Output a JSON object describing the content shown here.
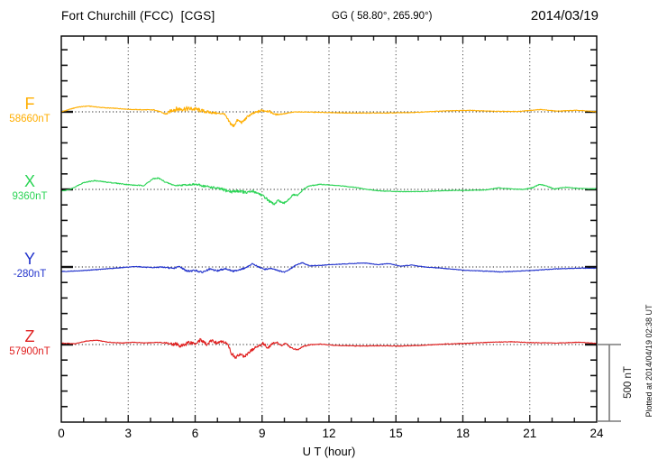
{
  "header": {
    "title": "Fort Churchill (FCC)  [CGS]",
    "gg_coords": "GG ( 58.80°, 265.90°)",
    "date": "2014/03/19"
  },
  "x_axis": {
    "label": "U T (hour)",
    "tick_hours": [
      0,
      3,
      6,
      9,
      12,
      15,
      18,
      21,
      24
    ],
    "minor_tick_every_hours": 1,
    "range_hours": [
      0,
      24
    ]
  },
  "scale_bar": {
    "label": "500 nT",
    "span_nt": 500
  },
  "plotted_at_note": "Plotted at 2014/04/19 02:38 UT",
  "chart_data": {
    "type": "line",
    "title": "Fort Churchill (FCC)  [CGS]",
    "xlabel": "U T (hour)",
    "x_range": [
      0,
      24
    ],
    "grid": "dotted vertical lines every 3 h; dotted horizontal baseline per trace",
    "amplitude_scale": {
      "minor_tick_nt": 100,
      "scale_bar_nt": 500
    },
    "series": [
      {
        "id": "F",
        "label": "F",
        "baseline_label": "58660nT",
        "baseline_nt": 58660,
        "color": "#FFAE00",
        "keypoints_t_offsetnT_noisenT": [
          [
            0,
            0,
            2
          ],
          [
            0.7,
            30,
            2
          ],
          [
            1.2,
            38,
            2
          ],
          [
            1.8,
            28,
            2
          ],
          [
            2.5,
            22,
            2
          ],
          [
            3.2,
            15,
            2
          ],
          [
            4.2,
            12,
            3
          ],
          [
            4.7,
            -15,
            5
          ],
          [
            5,
            15,
            16
          ],
          [
            5.5,
            20,
            16
          ],
          [
            6,
            18,
            14
          ],
          [
            6.5,
            0,
            10
          ],
          [
            7,
            -10,
            6
          ],
          [
            7.3,
            -12,
            5
          ],
          [
            7.5,
            -60,
            10
          ],
          [
            7.7,
            -95,
            12
          ],
          [
            7.9,
            -55,
            10
          ],
          [
            8.1,
            -70,
            9
          ],
          [
            8.4,
            -25,
            8
          ],
          [
            8.7,
            -5,
            8
          ],
          [
            9,
            10,
            10
          ],
          [
            9.3,
            5,
            8
          ],
          [
            9.6,
            -18,
            5
          ],
          [
            10,
            -12,
            3
          ],
          [
            10.5,
            0,
            2
          ],
          [
            11.5,
            -3,
            2
          ],
          [
            13,
            -8,
            2
          ],
          [
            14.5,
            -8,
            2
          ],
          [
            16,
            -3,
            2
          ],
          [
            17,
            5,
            2
          ],
          [
            18.3,
            10,
            2
          ],
          [
            19.5,
            3,
            2
          ],
          [
            20.5,
            3,
            2
          ],
          [
            21.5,
            15,
            2
          ],
          [
            22.2,
            5,
            2
          ],
          [
            23.2,
            10,
            2
          ],
          [
            24,
            0,
            2
          ]
        ]
      },
      {
        "id": "X",
        "label": "X",
        "baseline_label": "9360nT",
        "baseline_nt": 9360,
        "color": "#2BD455",
        "keypoints_t_offsetnT_noisenT": [
          [
            0,
            -12,
            2
          ],
          [
            0.4,
            0,
            2
          ],
          [
            1,
            45,
            3
          ],
          [
            1.5,
            57,
            3
          ],
          [
            2,
            48,
            3
          ],
          [
            2.6,
            38,
            3
          ],
          [
            3.2,
            28,
            3
          ],
          [
            3.7,
            25,
            3
          ],
          [
            4.1,
            68,
            4
          ],
          [
            4.35,
            74,
            4
          ],
          [
            4.7,
            45,
            4
          ],
          [
            5.1,
            25,
            4
          ],
          [
            5.6,
            30,
            5
          ],
          [
            6,
            33,
            6
          ],
          [
            6.4,
            22,
            8
          ],
          [
            6.8,
            12,
            8
          ],
          [
            7.2,
            0,
            10
          ],
          [
            7.6,
            -15,
            10
          ],
          [
            8,
            -10,
            10
          ],
          [
            8.3,
            -22,
            9
          ],
          [
            8.6,
            -12,
            9
          ],
          [
            8.9,
            -30,
            8
          ],
          [
            9.1,
            -48,
            8
          ],
          [
            9.35,
            -80,
            8
          ],
          [
            9.55,
            -98,
            8
          ],
          [
            9.75,
            -70,
            8
          ],
          [
            9.95,
            -95,
            8
          ],
          [
            10.15,
            -70,
            6
          ],
          [
            10.4,
            -35,
            6
          ],
          [
            10.6,
            -40,
            5
          ],
          [
            10.85,
            0,
            4
          ],
          [
            11.1,
            22,
            3
          ],
          [
            11.6,
            33,
            3
          ],
          [
            12.1,
            28,
            2
          ],
          [
            12.6,
            22,
            2
          ],
          [
            13.1,
            15,
            2
          ],
          [
            13.7,
            0,
            2
          ],
          [
            14.3,
            -10,
            2
          ],
          [
            15.2,
            -14,
            2
          ],
          [
            16.2,
            -14,
            2
          ],
          [
            17.2,
            -8,
            2
          ],
          [
            18.2,
            -6,
            2
          ],
          [
            19,
            -4,
            2
          ],
          [
            19.6,
            10,
            2
          ],
          [
            20.1,
            4,
            2
          ],
          [
            20.7,
            0,
            2
          ],
          [
            21.1,
            10,
            3
          ],
          [
            21.45,
            33,
            3
          ],
          [
            21.8,
            20,
            3
          ],
          [
            22.1,
            3,
            2
          ],
          [
            22.6,
            14,
            2
          ],
          [
            23.1,
            8,
            2
          ],
          [
            23.6,
            3,
            2
          ],
          [
            24,
            5,
            2
          ]
        ]
      },
      {
        "id": "Y",
        "label": "Y",
        "baseline_label": "-280nT",
        "baseline_nt": -280,
        "color": "#2233CC",
        "keypoints_t_offsetnT_noisenT": [
          [
            0,
            -30,
            2
          ],
          [
            0.8,
            -25,
            2
          ],
          [
            1.8,
            -15,
            2
          ],
          [
            2.8,
            -3,
            2
          ],
          [
            3.4,
            3,
            2
          ],
          [
            4,
            -5,
            3
          ],
          [
            4.5,
            0,
            3
          ],
          [
            5,
            -10,
            5
          ],
          [
            5.3,
            3,
            5
          ],
          [
            5.65,
            -28,
            6
          ],
          [
            6,
            -22,
            6
          ],
          [
            6.3,
            -35,
            6
          ],
          [
            6.65,
            -15,
            6
          ],
          [
            7,
            -25,
            6
          ],
          [
            7.35,
            -10,
            5
          ],
          [
            7.7,
            -28,
            5
          ],
          [
            8.05,
            -15,
            5
          ],
          [
            8.3,
            -5,
            4
          ],
          [
            8.55,
            22,
            4
          ],
          [
            8.85,
            0,
            4
          ],
          [
            9.1,
            -15,
            4
          ],
          [
            9.4,
            -10,
            4
          ],
          [
            9.7,
            -22,
            4
          ],
          [
            10,
            -35,
            4
          ],
          [
            10.3,
            -10,
            4
          ],
          [
            10.55,
            15,
            3
          ],
          [
            10.8,
            28,
            3
          ],
          [
            11.1,
            8,
            3
          ],
          [
            11.6,
            10,
            2
          ],
          [
            12.1,
            15,
            2
          ],
          [
            13,
            22,
            2
          ],
          [
            13.6,
            26,
            2
          ],
          [
            14.2,
            15,
            2
          ],
          [
            14.7,
            22,
            2
          ],
          [
            15.2,
            5,
            2
          ],
          [
            15.7,
            12,
            2
          ],
          [
            16.3,
            0,
            2
          ],
          [
            17.2,
            -10,
            2
          ],
          [
            18.1,
            -22,
            2
          ],
          [
            19.2,
            -28,
            2
          ],
          [
            19.7,
            -32,
            2
          ],
          [
            20.3,
            -28,
            2
          ],
          [
            21.2,
            -22,
            2
          ],
          [
            22.2,
            -12,
            2
          ],
          [
            23.2,
            -8,
            2
          ],
          [
            24,
            -8,
            2
          ]
        ]
      },
      {
        "id": "Z",
        "label": "Z",
        "baseline_label": "57900nT",
        "baseline_nt": 57900,
        "color": "#E02020",
        "keypoints_t_offsetnT_noisenT": [
          [
            0,
            10,
            2
          ],
          [
            0.6,
            5,
            2
          ],
          [
            1.1,
            22,
            2
          ],
          [
            1.6,
            28,
            2
          ],
          [
            2.1,
            15,
            2
          ],
          [
            2.7,
            10,
            2
          ],
          [
            3.2,
            15,
            2
          ],
          [
            3.8,
            10,
            2
          ],
          [
            4.3,
            15,
            3
          ],
          [
            4.8,
            8,
            6
          ],
          [
            5.1,
            2,
            14
          ],
          [
            5.4,
            -10,
            14
          ],
          [
            5.7,
            15,
            14
          ],
          [
            6,
            8,
            14
          ],
          [
            6.25,
            32,
            12
          ],
          [
            6.5,
            0,
            12
          ],
          [
            6.75,
            25,
            12
          ],
          [
            7,
            10,
            10
          ],
          [
            7.2,
            20,
            8
          ],
          [
            7.45,
            8,
            6
          ],
          [
            7.62,
            -55,
            10
          ],
          [
            7.8,
            -88,
            10
          ],
          [
            8,
            -62,
            10
          ],
          [
            8.2,
            -80,
            9
          ],
          [
            8.5,
            -40,
            9
          ],
          [
            8.8,
            -12,
            8
          ],
          [
            9.05,
            8,
            10
          ],
          [
            9.25,
            -22,
            8
          ],
          [
            9.45,
            3,
            8
          ],
          [
            9.65,
            15,
            6
          ],
          [
            9.85,
            -8,
            5
          ],
          [
            10.05,
            8,
            4
          ],
          [
            10.3,
            -22,
            4
          ],
          [
            10.6,
            -35,
            4
          ],
          [
            10.85,
            -12,
            4
          ],
          [
            11.1,
            -2,
            3
          ],
          [
            11.6,
            3,
            2
          ],
          [
            12.2,
            -5,
            2
          ],
          [
            13.2,
            -10,
            2
          ],
          [
            14.2,
            -8,
            2
          ],
          [
            15.2,
            -10,
            2
          ],
          [
            16.2,
            -5,
            2
          ],
          [
            17.2,
            3,
            2
          ],
          [
            18.2,
            8,
            2
          ],
          [
            19.2,
            15,
            2
          ],
          [
            20.2,
            18,
            2
          ],
          [
            21.2,
            12,
            2
          ],
          [
            22.2,
            10,
            2
          ],
          [
            23.2,
            15,
            2
          ],
          [
            24,
            8,
            2
          ]
        ]
      }
    ]
  }
}
